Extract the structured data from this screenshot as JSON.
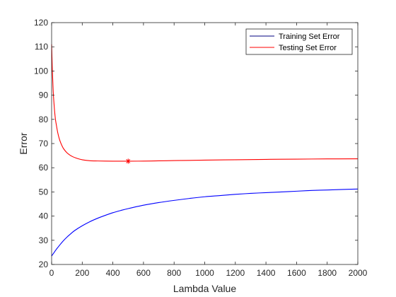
{
  "chart_data": {
    "type": "line",
    "title": "",
    "xlabel": "Lambda Value",
    "ylabel": "Error",
    "xlim": [
      0,
      2000
    ],
    "ylim": [
      20,
      120
    ],
    "xticks": [
      "0",
      "200",
      "400",
      "600",
      "800",
      "1000",
      "1200",
      "1400",
      "1600",
      "1800",
      "2000"
    ],
    "yticks": [
      "20",
      "30",
      "40",
      "50",
      "60",
      "70",
      "80",
      "90",
      "100",
      "110",
      "120"
    ],
    "grid": false,
    "legend_position": "top-right",
    "series": [
      {
        "name": "Training Set Error",
        "color": "#0000ff",
        "legend_color": "#000080",
        "x": [
          0,
          10,
          20,
          30,
          40,
          50,
          75,
          100,
          125,
          150,
          200,
          250,
          300,
          350,
          400,
          450,
          500,
          600,
          700,
          800,
          900,
          1000,
          1100,
          1200,
          1300,
          1400,
          1500,
          1600,
          1700,
          1800,
          1900,
          2000
        ],
        "y": [
          23.5,
          24.4,
          25.3,
          26.2,
          27.0,
          27.8,
          29.7,
          31.3,
          32.7,
          34.0,
          36.0,
          37.7,
          39.1,
          40.3,
          41.4,
          42.3,
          43.1,
          44.5,
          45.6,
          46.5,
          47.3,
          48.0,
          48.5,
          49.0,
          49.4,
          49.7,
          50.0,
          50.3,
          50.6,
          50.8,
          51.0,
          51.2
        ]
      },
      {
        "name": "Testing Set Error",
        "color": "#ff0000",
        "legend_color": "#ff0000",
        "x": [
          0,
          5,
          10,
          15,
          20,
          25,
          30,
          40,
          50,
          60,
          70,
          80,
          100,
          120,
          140,
          160,
          180,
          200,
          250,
          300,
          350,
          400,
          450,
          500,
          600,
          700,
          800,
          900,
          1000,
          1200,
          1400,
          1600,
          1800,
          2000
        ],
        "y": [
          111,
          100,
          92,
          87,
          83,
          80,
          78,
          74.5,
          72,
          70.2,
          68.8,
          67.7,
          66.2,
          65.2,
          64.5,
          64.0,
          63.6,
          63.3,
          62.9,
          62.8,
          62.75,
          62.72,
          62.7,
          62.7,
          62.75,
          62.85,
          62.95,
          63.05,
          63.15,
          63.3,
          63.45,
          63.55,
          63.65,
          63.7
        ]
      }
    ],
    "marker": {
      "x": 500,
      "y": 62.7,
      "symbol": "asterisk",
      "color": "#ff0000"
    }
  }
}
